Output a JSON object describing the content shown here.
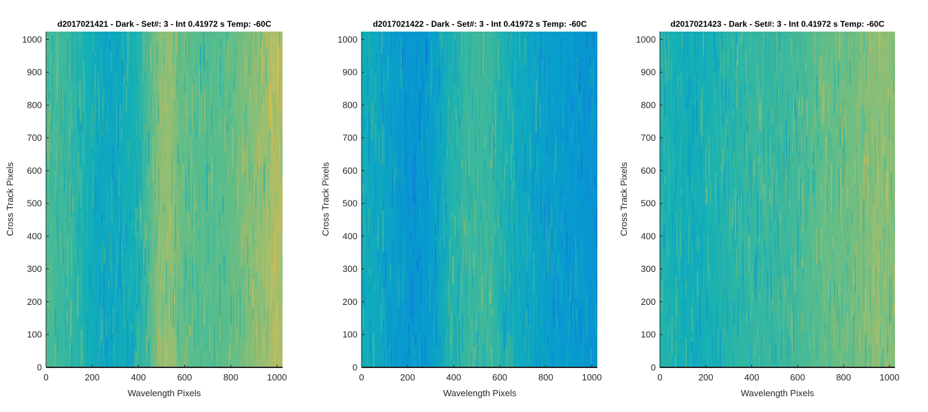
{
  "chart_data": [
    {
      "type": "heatmap",
      "title": "d2017021421 - Dark - Set#: 3 - Int 0.41972 s Temp: -60C",
      "xlabel": "Wavelength Pixels",
      "ylabel": "Cross Track Pixels",
      "xlim": [
        0,
        1024
      ],
      "ylim": [
        0,
        1024
      ],
      "xticks": [
        0,
        200,
        400,
        600,
        800,
        1000
      ],
      "yticks": [
        0,
        100,
        200,
        300,
        400,
        500,
        600,
        700,
        800,
        900,
        1000
      ],
      "colormap": "parula",
      "column_profile": [
        [
          0,
          0.48
        ],
        [
          60,
          0.46
        ],
        [
          120,
          0.44
        ],
        [
          170,
          0.4
        ],
        [
          230,
          0.36
        ],
        [
          280,
          0.35
        ],
        [
          330,
          0.37
        ],
        [
          380,
          0.4
        ],
        [
          430,
          0.46
        ],
        [
          490,
          0.56
        ],
        [
          540,
          0.58
        ],
        [
          580,
          0.52
        ],
        [
          640,
          0.5
        ],
        [
          700,
          0.49
        ],
        [
          760,
          0.5
        ],
        [
          820,
          0.52
        ],
        [
          880,
          0.55
        ],
        [
          940,
          0.58
        ],
        [
          990,
          0.62
        ],
        [
          1024,
          0.6
        ]
      ]
    },
    {
      "type": "heatmap",
      "title": "d2017021422 - Dark - Set#: 3 - Int 0.41972 s Temp: -60C",
      "xlabel": "Wavelength Pixels",
      "ylabel": "Cross Track Pixels",
      "xlim": [
        0,
        1024
      ],
      "ylim": [
        0,
        1024
      ],
      "xticks": [
        0,
        200,
        400,
        600,
        800,
        1000
      ],
      "yticks": [
        0,
        100,
        200,
        300,
        400,
        500,
        600,
        700,
        800,
        900,
        1000
      ],
      "colormap": "parula",
      "column_profile": [
        [
          0,
          0.38
        ],
        [
          60,
          0.36
        ],
        [
          120,
          0.33
        ],
        [
          180,
          0.29
        ],
        [
          230,
          0.28
        ],
        [
          290,
          0.3
        ],
        [
          340,
          0.36
        ],
        [
          400,
          0.42
        ],
        [
          450,
          0.45
        ],
        [
          510,
          0.46
        ],
        [
          550,
          0.46
        ],
        [
          600,
          0.42
        ],
        [
          660,
          0.38
        ],
        [
          720,
          0.35
        ],
        [
          780,
          0.33
        ],
        [
          840,
          0.31
        ],
        [
          900,
          0.3
        ],
        [
          960,
          0.28
        ],
        [
          1024,
          0.27
        ]
      ]
    },
    {
      "type": "heatmap",
      "title": "d2017021423 - Dark - Set#: 3 - Int 0.41972 s Temp: -60C",
      "xlabel": "Wavelength Pixels",
      "ylabel": "Cross Track Pixels",
      "xlim": [
        0,
        1024
      ],
      "ylim": [
        0,
        1024
      ],
      "xticks": [
        0,
        200,
        400,
        600,
        800,
        1000
      ],
      "yticks": [
        0,
        100,
        200,
        300,
        400,
        500,
        600,
        700,
        800,
        900,
        1000
      ],
      "colormap": "parula",
      "column_profile": [
        [
          0,
          0.42
        ],
        [
          60,
          0.4
        ],
        [
          120,
          0.38
        ],
        [
          180,
          0.39
        ],
        [
          240,
          0.41
        ],
        [
          300,
          0.43
        ],
        [
          360,
          0.44
        ],
        [
          420,
          0.45
        ],
        [
          480,
          0.45
        ],
        [
          540,
          0.46
        ],
        [
          600,
          0.47
        ],
        [
          660,
          0.49
        ],
        [
          720,
          0.51
        ],
        [
          780,
          0.52
        ],
        [
          840,
          0.53
        ],
        [
          900,
          0.55
        ],
        [
          950,
          0.57
        ],
        [
          1000,
          0.56
        ],
        [
          1024,
          0.55
        ]
      ]
    }
  ]
}
